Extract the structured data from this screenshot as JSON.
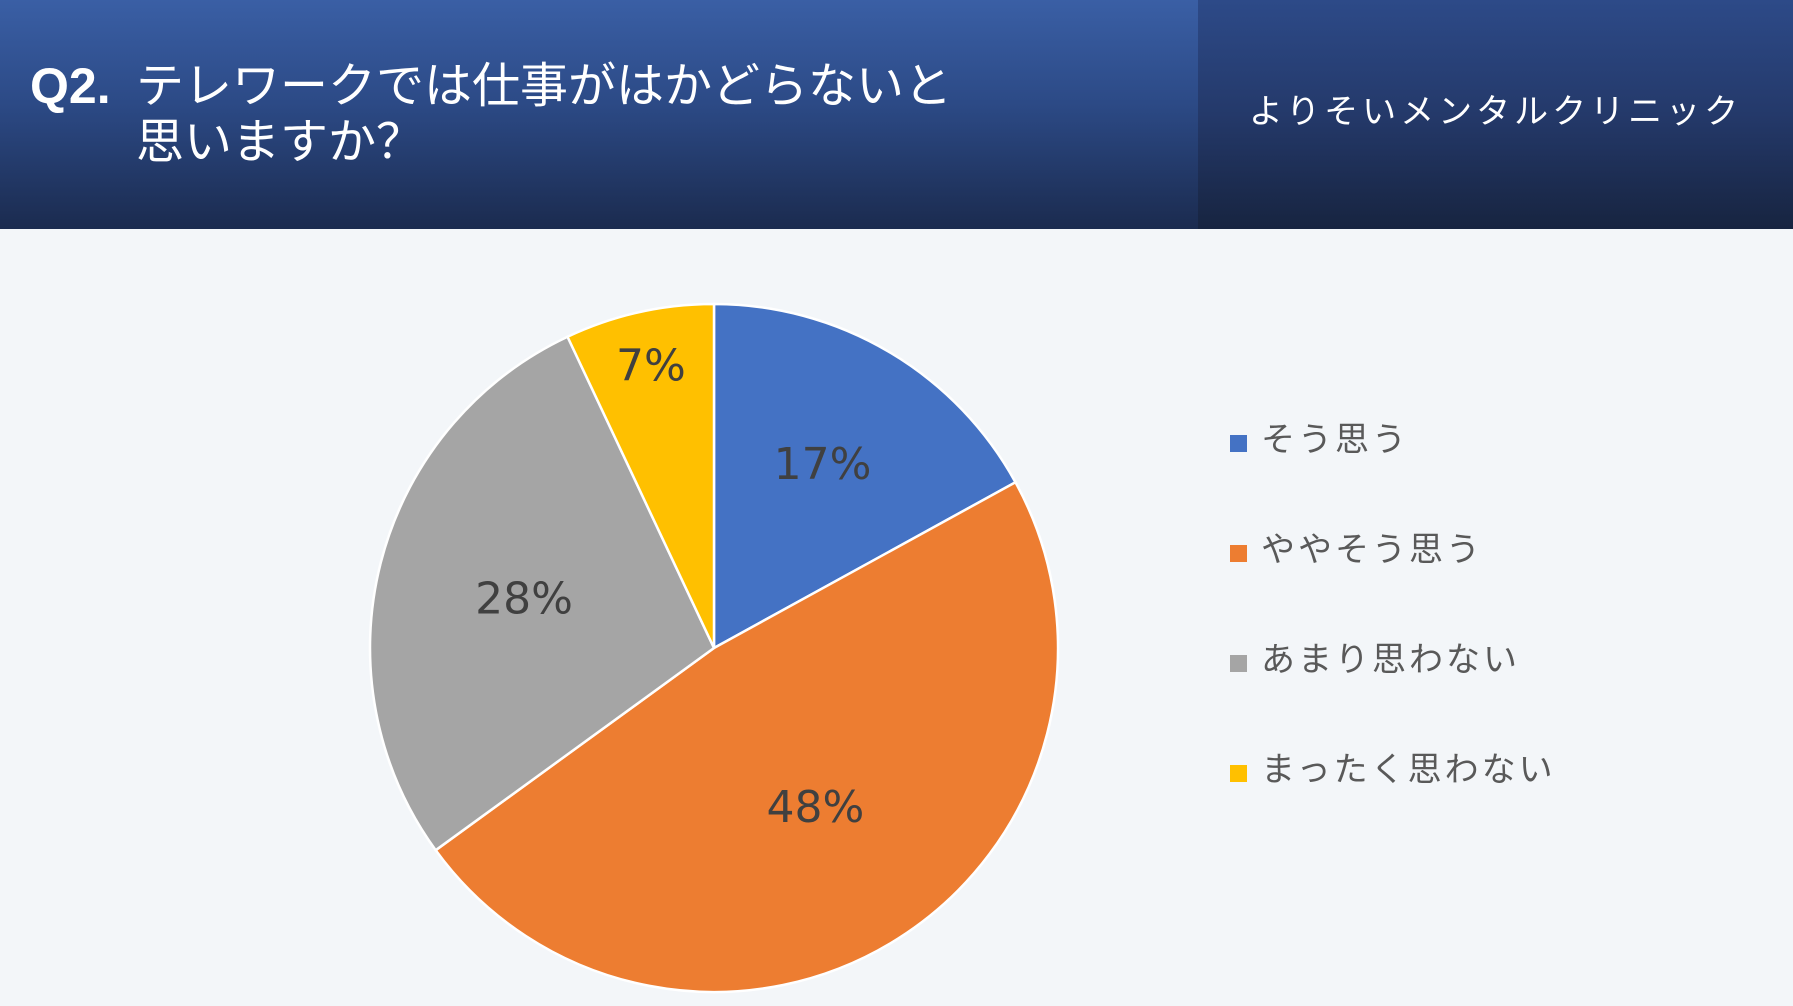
{
  "header": {
    "question_number": "Q2.",
    "question_line1": "テレワークでは仕事がはかどらないと",
    "question_line2": "思いますか？",
    "clinic_name": "よりそいメンタルクリニック"
  },
  "chart_data": {
    "type": "pie",
    "categories": [
      "そう思う",
      "ややそう思う",
      "あまり思わない",
      "まったく思わない"
    ],
    "values": [
      17,
      48,
      28,
      7
    ],
    "data_labels": [
      "17%",
      "48%",
      "28%",
      "7%"
    ],
    "colors": [
      "#4472c4",
      "#ed7d31",
      "#a5a5a5",
      "#ffc000"
    ],
    "start_angle": "12 o'clock",
    "direction": "clockwise",
    "legend_placement": "right"
  }
}
